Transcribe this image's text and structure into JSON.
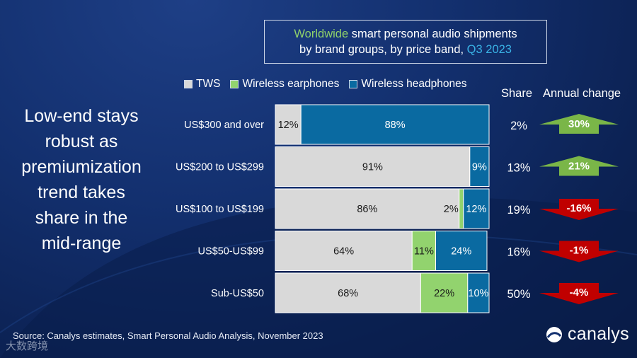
{
  "header": {
    "title_part1": "Worldwide",
    "title_part2": " smart personal audio shipments",
    "title_line2": "by brand groups, by price band, ",
    "title_period": "Q3 2023"
  },
  "headline": {
    "lines": [
      "Low-end stays",
      "robust as",
      "premiumization",
      "trend takes",
      "share in the",
      "mid-range"
    ]
  },
  "columns": {
    "share": "Share",
    "annual_change": "Annual change"
  },
  "footer": {
    "source": "Source: Canalys estimates, Smart Personal Audio Analysis, November 2023",
    "brand": "canalys",
    "watermark": "大数跨境"
  },
  "colors": {
    "tws": "#d9d9d9",
    "earphones": "#92d36e",
    "headphones": "#0a6aa1",
    "up": "#7ab648",
    "down": "#c00000"
  },
  "chart_data": {
    "type": "bar",
    "orientation": "horizontal",
    "stacked": true,
    "percent_stacked": true,
    "title": "Worldwide smart personal audio shipments by brand groups, by price band, Q3 2023",
    "categories": [
      "US$300 and over",
      "US$200 to US$299",
      "US$100 to US$199",
      "US$50-US$99",
      "Sub-US$50"
    ],
    "series": [
      {
        "name": "TWS",
        "values": [
          12,
          91,
          86,
          64,
          68
        ],
        "labels": [
          "12%",
          "91%",
          "86%",
          "64%",
          "68%"
        ]
      },
      {
        "name": "Wireless earphones",
        "values": [
          0,
          0,
          2,
          11,
          22
        ],
        "labels": [
          "",
          "",
          "2%",
          "11%",
          "22%"
        ]
      },
      {
        "name": "Wireless headphones",
        "values": [
          88,
          9,
          12,
          24,
          10
        ],
        "labels": [
          "88%",
          "9%",
          "12%",
          "24%",
          "10%"
        ]
      }
    ],
    "share": [
      "2%",
      "13%",
      "19%",
      "16%",
      "50%"
    ],
    "annual_change": [
      30,
      21,
      -16,
      -1,
      -4
    ],
    "annual_change_labels": [
      "30%",
      "21%",
      "-16%",
      "-1%",
      "-4%"
    ],
    "xlim": [
      0,
      100
    ],
    "legend": "top"
  }
}
